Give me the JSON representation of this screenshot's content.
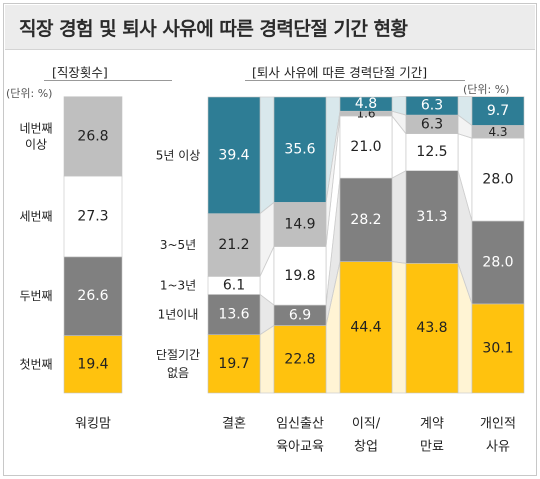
{
  "title": "직장 경험 및 퇴사 사유에 따른 경력단절 기간 현황",
  "panels": {
    "left_label": "[직장횟수]",
    "right_label": "[퇴사 사유에 따른 경력단절 기간]",
    "unit_left": "(단위: %)",
    "unit_right": "(단위: %)"
  },
  "colors": {
    "gold": "#ffc20e",
    "dark_gray": "#808080",
    "white": "#ffffff",
    "light_gray": "#bfbfbf",
    "teal": "#2e7d95",
    "connector": "#cfcfcf"
  },
  "chart_data": [
    {
      "type": "bar",
      "stacked": true,
      "categories": [
        "워킹맘"
      ],
      "series": [
        {
          "name": "첫번째",
          "values": [
            19.4
          ],
          "color": "gold"
        },
        {
          "name": "두번째",
          "values": [
            26.6
          ],
          "color": "dark_gray"
        },
        {
          "name": "세번째",
          "values": [
            27.3
          ],
          "color": "white"
        },
        {
          "name": "네번째 이상",
          "values": [
            26.8
          ],
          "color": "light_gray"
        }
      ]
    },
    {
      "type": "bar",
      "stacked": true,
      "categories": [
        "결혼",
        "임신출산 육아교육",
        "이직/ 창업",
        "계약 만료",
        "개인적 사유"
      ],
      "series": [
        {
          "name": "단절기간 없음",
          "values": [
            19.7,
            22.8,
            44.4,
            43.8,
            30.1
          ],
          "color": "gold"
        },
        {
          "name": "1년이내",
          "values": [
            13.6,
            6.9,
            28.2,
            31.3,
            28.0
          ],
          "color": "dark_gray"
        },
        {
          "name": "1~3년",
          "values": [
            6.1,
            19.8,
            21.0,
            12.5,
            28.0
          ],
          "color": "white"
        },
        {
          "name": "3~5년",
          "values": [
            21.2,
            14.9,
            1.6,
            6.3,
            4.3
          ],
          "color": "light_gray"
        },
        {
          "name": "5년 이상",
          "values": [
            39.4,
            35.6,
            4.8,
            6.3,
            9.7
          ],
          "color": "teal"
        }
      ]
    }
  ]
}
